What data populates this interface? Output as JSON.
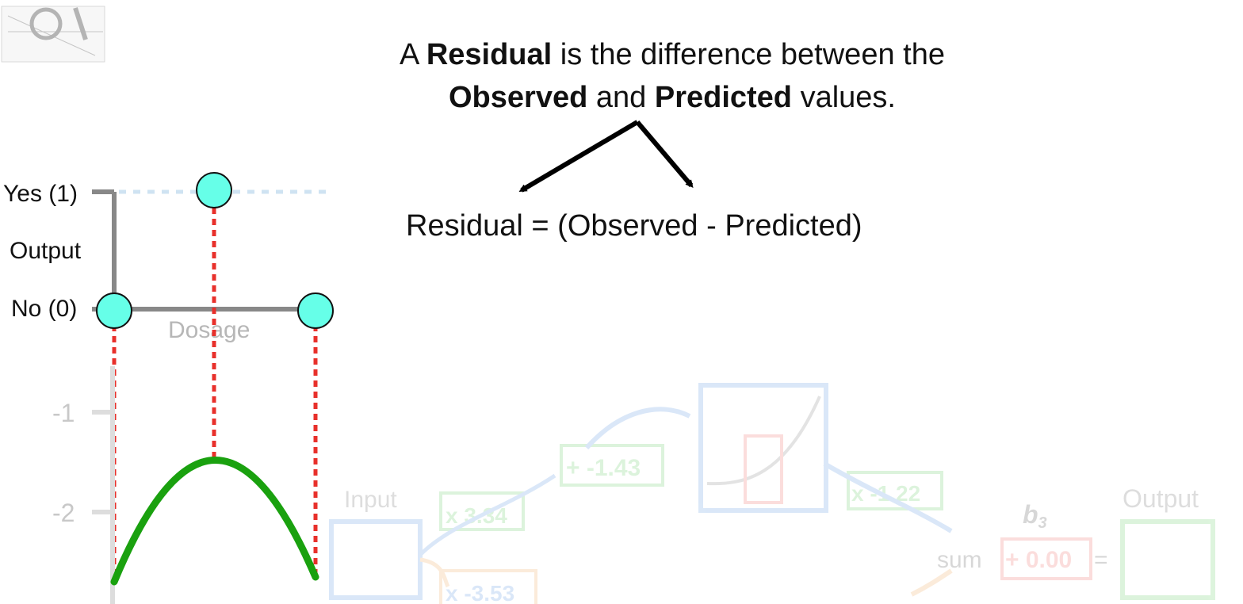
{
  "headline": {
    "line1": {
      "pre": "A ",
      "bold1": "Residual",
      "post": " is the difference between the"
    },
    "line2": {
      "bold1": "Observed",
      "mid": " and ",
      "bold2": "Predicted",
      "post": " values."
    }
  },
  "formula": "Residual = (Observed - Predicted)",
  "top_plot": {
    "y_tick_yes": "Yes (1)",
    "y_tick_no": "No (0)",
    "y_label": "Output",
    "x_label": "Dosage",
    "observed_points": [
      {
        "dosage": 0.0,
        "output": 0
      },
      {
        "dosage": 0.5,
        "output": 1
      },
      {
        "dosage": 1.0,
        "output": 0
      }
    ],
    "colors": {
      "point": "#66ffe8",
      "residual_line": "#e8302b",
      "axis": "#888888",
      "yes_dotted": "#cfe3f2"
    }
  },
  "bottom_plot": {
    "y_ticks": [
      "-1",
      "-2"
    ],
    "curve_color": "#1aa10f",
    "curve_peak": -1.5,
    "curve_ends": -2.7
  },
  "faded_network": {
    "input_label": "Input",
    "output_label": "Output",
    "w1": "x 3.34",
    "w2": "x -3.53",
    "bias1": "+ -1.43",
    "w3": "x -1.22",
    "b3_label": "b",
    "b3_sub": "3",
    "sum_label": "sum",
    "b3_value": "+ 0.00",
    "equals": "="
  }
}
